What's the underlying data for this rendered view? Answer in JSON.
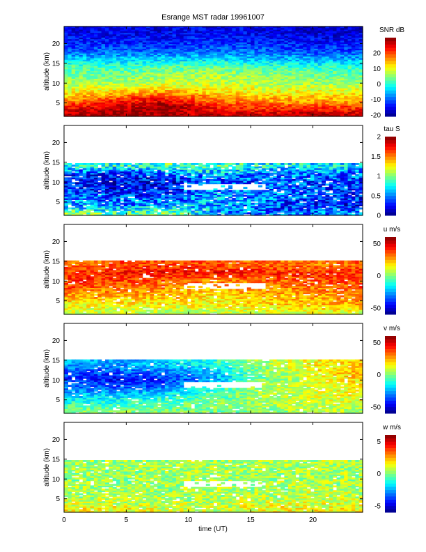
{
  "chart_data": {
    "type": "heatmap",
    "title": "Esrange MST radar 19961007",
    "xlabel": "time (UT)",
    "xlim": [
      0,
      24
    ],
    "xticks": [
      0,
      5,
      10,
      15,
      20
    ],
    "ylim": [
      1.6,
      24.3
    ],
    "yticks": [
      5,
      10,
      15,
      20
    ],
    "grid_times": [
      0,
      4,
      8,
      12,
      16,
      20,
      24
    ],
    "grid_altitudes": [
      2,
      4,
      6,
      8,
      10,
      12,
      14,
      16,
      18,
      20,
      22,
      24
    ],
    "panels": [
      {
        "name": "snr",
        "ylabel": "altitude (km)",
        "colorbar_label": "SNR dB",
        "clim": [
          -21,
          30
        ],
        "cticks": [
          -20,
          -10,
          0,
          10,
          20
        ],
        "data_top_km": 24.3,
        "values": [
          [
            27,
            28,
            28,
            26,
            26,
            27,
            27
          ],
          [
            22,
            26,
            29,
            22,
            20,
            20,
            20
          ],
          [
            15,
            20,
            23,
            16,
            15,
            14,
            14
          ],
          [
            10,
            12,
            14,
            12,
            10,
            10,
            10
          ],
          [
            6,
            6,
            8,
            8,
            7,
            6,
            6
          ],
          [
            4,
            4,
            6,
            7,
            5,
            4,
            3
          ],
          [
            2,
            1,
            2,
            3,
            1,
            0,
            0
          ],
          [
            -4,
            -5,
            -4,
            -3,
            -5,
            -6,
            -6
          ],
          [
            -10,
            -10,
            -10,
            -9,
            -10,
            -11,
            -11
          ],
          [
            -13,
            -13,
            -13,
            -12,
            -13,
            -14,
            -14
          ],
          [
            -15,
            -15,
            -15,
            -14,
            -15,
            -16,
            -16
          ],
          [
            -16,
            -16,
            -16,
            -15,
            -16,
            -17,
            -17
          ]
        ]
      },
      {
        "name": "tau",
        "ylabel": "altitude (km)",
        "colorbar_label": "tau S",
        "clim": [
          0,
          2
        ],
        "cticks": [
          0,
          0.5,
          1,
          1.5,
          2
        ],
        "data_top_km": 14.8,
        "values": [
          [
            1.0,
            0.9,
            1.0,
            0.6,
            0.5,
            0.5,
            0.5
          ],
          [
            0.6,
            0.5,
            0.6,
            0.6,
            0.4,
            0.3,
            0.3
          ],
          [
            0.5,
            0.4,
            0.4,
            0.6,
            0.5,
            0.4,
            0.3
          ],
          [
            0.4,
            0.3,
            0.3,
            0.5,
            0.5,
            0.4,
            0.3
          ],
          [
            0.3,
            0.2,
            0.25,
            0.4,
            0.4,
            0.4,
            0.35
          ],
          [
            0.4,
            0.3,
            0.5,
            0.6,
            0.5,
            0.5,
            0.5
          ],
          [
            0.8,
            0.8,
            0.9,
            0.9,
            0.8,
            0.7,
            0.7
          ]
        ]
      },
      {
        "name": "u",
        "ylabel": "altitude (km)",
        "colorbar_label": "u m/s",
        "clim": [
          -60,
          60
        ],
        "cticks": [
          -50,
          0,
          50
        ],
        "data_top_km": 14.8,
        "values": [
          [
            10,
            10,
            8,
            8,
            10,
            12,
            12
          ],
          [
            15,
            15,
            15,
            15,
            20,
            22,
            25
          ],
          [
            25,
            25,
            22,
            18,
            22,
            25,
            30
          ],
          [
            35,
            30,
            28,
            25,
            28,
            30,
            35
          ],
          [
            40,
            38,
            35,
            30,
            32,
            35,
            40
          ],
          [
            40,
            42,
            45,
            45,
            42,
            40,
            40
          ],
          [
            30,
            35,
            38,
            35,
            32,
            30,
            35
          ]
        ]
      },
      {
        "name": "v",
        "ylabel": "altitude (km)",
        "colorbar_label": "v m/s",
        "clim": [
          -60,
          60
        ],
        "cticks": [
          -50,
          0,
          50
        ],
        "data_top_km": 14.8,
        "values": [
          [
            0,
            0,
            0,
            0,
            0,
            5,
            5
          ],
          [
            -10,
            -10,
            -5,
            0,
            5,
            10,
            10
          ],
          [
            -20,
            -20,
            -15,
            -5,
            5,
            10,
            15
          ],
          [
            -30,
            -35,
            -30,
            -10,
            5,
            10,
            15
          ],
          [
            -40,
            -45,
            -40,
            -25,
            0,
            10,
            20
          ],
          [
            -35,
            -35,
            -30,
            -20,
            0,
            15,
            25
          ],
          [
            -25,
            -25,
            -20,
            -10,
            5,
            15,
            20
          ]
        ]
      },
      {
        "name": "w",
        "ylabel": "altitude (km)",
        "colorbar_label": "w m/s",
        "clim": [
          -6,
          6
        ],
        "cticks": [
          -5,
          0,
          5
        ],
        "data_top_km": 14.8,
        "values": [
          [
            1.5,
            1.5,
            1.2,
            1.0,
            1.5,
            1.5,
            1.5
          ],
          [
            0.8,
            0.8,
            0.6,
            0.6,
            1.0,
            1.0,
            1.0
          ],
          [
            0.5,
            0.5,
            0.5,
            0.5,
            0.6,
            0.8,
            0.8
          ],
          [
            0.4,
            0.4,
            0.4,
            0.5,
            0.5,
            0.6,
            0.6
          ],
          [
            0.3,
            0.3,
            0.4,
            0.5,
            0.5,
            0.5,
            0.5
          ],
          [
            0.3,
            0.3,
            0.5,
            0.5,
            0.5,
            0.5,
            0.5
          ],
          [
            0.4,
            0.4,
            0.5,
            0.5,
            0.5,
            0.5,
            0.5
          ]
        ]
      }
    ],
    "missing_regions": [
      {
        "panels": [
          "tau",
          "u",
          "v",
          "w"
        ],
        "time": [
          9.5,
          16
        ],
        "altitude": [
          8,
          9.5
        ]
      }
    ]
  }
}
